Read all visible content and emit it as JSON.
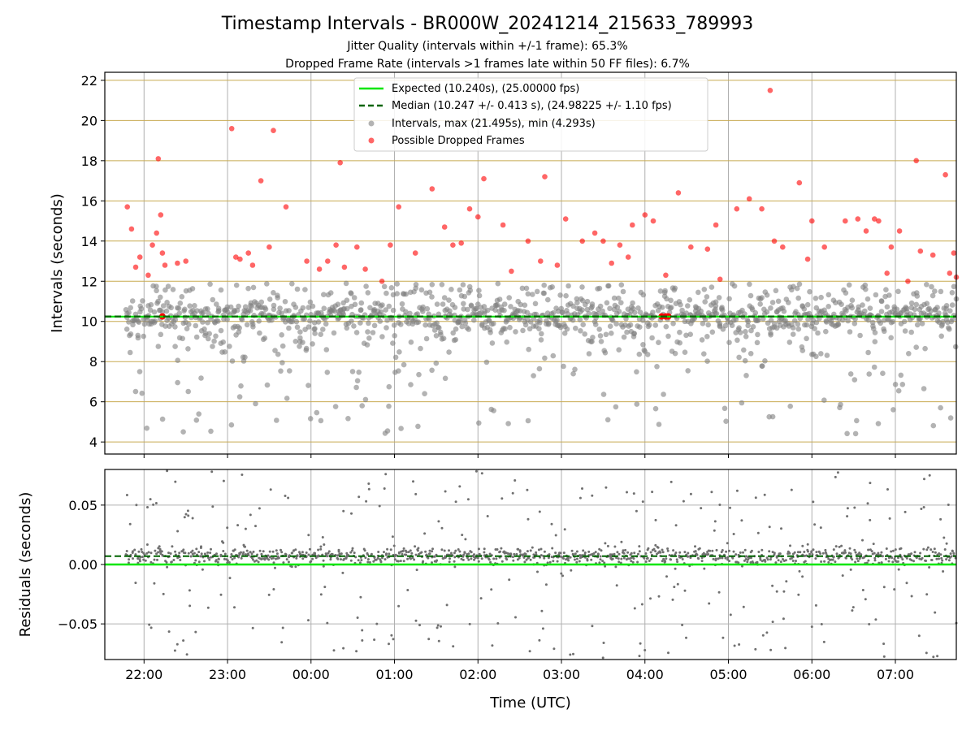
{
  "title": "Timestamp Intervals - BR000W_20241214_215633_789993",
  "subtitle1": "Jitter Quality (intervals within +/-1 frame): 65.3%",
  "subtitle2": "Dropped Frame Rate (intervals >1 frames late within 50 FF files): 6.7%",
  "colors": {
    "expected": "#00e600",
    "median": "#006400",
    "intervals": "#808080",
    "dropped": "#ff0000",
    "hgrid_top": "#c8aa50",
    "vgrid": "#b0b0b0"
  },
  "chart_data": [
    {
      "type": "scatter",
      "panel": "top",
      "xlabel": "",
      "ylabel": "Intervals (seconds)",
      "ylim": [
        3.4,
        22.4
      ],
      "yticks": [
        4,
        6,
        8,
        10,
        12,
        14,
        16,
        18,
        20,
        22
      ],
      "ytick_labels": [
        "4",
        "6",
        "8",
        "10",
        "12",
        "14",
        "16",
        "18",
        "20",
        "22"
      ],
      "x_range_hours": [
        -2.47,
        7.73
      ],
      "grid": "horizontal gold lines and vertical grey lines",
      "legend_placement": "top-center",
      "expected_interval": 10.24,
      "median_interval": 10.247,
      "legend": [
        "Expected (10.240s), (25.00000 fps)",
        "Median (10.247 +/- 0.413 s), (24.98225 +/- 1.10 fps)",
        "Intervals, max (21.495s), min (4.293s)",
        "Possible Dropped Frames"
      ],
      "dropped_frames": [
        [
          -2.2,
          15.7
        ],
        [
          -2.15,
          14.6
        ],
        [
          -2.1,
          12.7
        ],
        [
          -2.05,
          13.2
        ],
        [
          -1.95,
          12.3
        ],
        [
          -1.9,
          13.8
        ],
        [
          -1.85,
          14.4
        ],
        [
          -1.83,
          18.1
        ],
        [
          -1.8,
          15.3
        ],
        [
          -1.78,
          13.4
        ],
        [
          -1.75,
          12.8
        ],
        [
          -1.6,
          12.9
        ],
        [
          -1.5,
          13.0
        ],
        [
          -0.95,
          19.6
        ],
        [
          -0.9,
          13.2
        ],
        [
          -0.85,
          13.1
        ],
        [
          -0.75,
          13.4
        ],
        [
          -0.7,
          12.8
        ],
        [
          -0.6,
          17.0
        ],
        [
          -0.5,
          13.7
        ],
        [
          -0.45,
          19.5
        ],
        [
          -0.3,
          15.7
        ],
        [
          -0.05,
          13.0
        ],
        [
          0.1,
          12.6
        ],
        [
          0.2,
          13.0
        ],
        [
          0.3,
          13.8
        ],
        [
          0.35,
          17.9
        ],
        [
          0.4,
          12.7
        ],
        [
          0.55,
          13.7
        ],
        [
          0.65,
          12.6
        ],
        [
          0.85,
          12.0
        ],
        [
          0.95,
          13.8
        ],
        [
          1.05,
          15.7
        ],
        [
          1.25,
          13.4
        ],
        [
          1.45,
          16.6
        ],
        [
          1.6,
          14.7
        ],
        [
          1.7,
          13.8
        ],
        [
          1.8,
          13.9
        ],
        [
          1.9,
          15.6
        ],
        [
          2.0,
          15.2
        ],
        [
          2.07,
          17.1
        ],
        [
          2.3,
          14.8
        ],
        [
          2.4,
          12.5
        ],
        [
          2.6,
          14.0
        ],
        [
          2.75,
          13.0
        ],
        [
          2.8,
          17.2
        ],
        [
          2.95,
          12.8
        ],
        [
          3.05,
          15.1
        ],
        [
          3.25,
          14.0
        ],
        [
          3.4,
          14.4
        ],
        [
          3.5,
          14.0
        ],
        [
          3.6,
          12.9
        ],
        [
          3.7,
          13.8
        ],
        [
          3.8,
          13.2
        ],
        [
          3.85,
          14.8
        ],
        [
          4.0,
          15.3
        ],
        [
          4.1,
          15.0
        ],
        [
          4.25,
          12.3
        ],
        [
          4.4,
          16.4
        ],
        [
          4.55,
          13.7
        ],
        [
          4.75,
          13.6
        ],
        [
          4.85,
          14.8
        ],
        [
          4.9,
          12.1
        ],
        [
          5.1,
          15.6
        ],
        [
          5.25,
          16.1
        ],
        [
          5.4,
          15.6
        ],
        [
          5.5,
          21.5
        ],
        [
          5.55,
          14.0
        ],
        [
          5.65,
          13.7
        ],
        [
          5.85,
          16.9
        ],
        [
          5.95,
          13.1
        ],
        [
          6.0,
          15.0
        ],
        [
          6.15,
          13.7
        ],
        [
          6.4,
          15.0
        ],
        [
          6.55,
          15.1
        ],
        [
          6.65,
          14.5
        ],
        [
          6.75,
          15.1
        ],
        [
          6.8,
          15.0
        ],
        [
          6.9,
          12.4
        ],
        [
          6.95,
          13.7
        ],
        [
          7.05,
          14.5
        ],
        [
          7.15,
          12.0
        ],
        [
          7.25,
          18.0
        ],
        [
          7.3,
          13.5
        ],
        [
          7.45,
          13.3
        ],
        [
          7.6,
          17.3
        ],
        [
          7.65,
          12.4
        ],
        [
          7.7,
          13.4
        ],
        [
          7.73,
          12.2
        ]
      ]
    },
    {
      "type": "scatter",
      "panel": "bottom",
      "xlabel": "Time (UTC)",
      "ylabel": "Residuals (seconds)",
      "ylim": [
        -0.08,
        0.08
      ],
      "yticks": [
        -0.05,
        0.0,
        0.05
      ],
      "ytick_labels": [
        "−0.05",
        "0.00",
        "0.05"
      ],
      "x_range_hours": [
        -2.47,
        7.73
      ],
      "xticks_hours": [
        -2,
        -1,
        0,
        1,
        2,
        3,
        4,
        5,
        6,
        7
      ],
      "xtick_labels": [
        "22:00",
        "23:00",
        "00:00",
        "01:00",
        "02:00",
        "03:00",
        "04:00",
        "05:00",
        "06:00",
        "07:00"
      ],
      "expected_residual": 0.0,
      "median_residual": 0.007,
      "grid": "both"
    }
  ]
}
